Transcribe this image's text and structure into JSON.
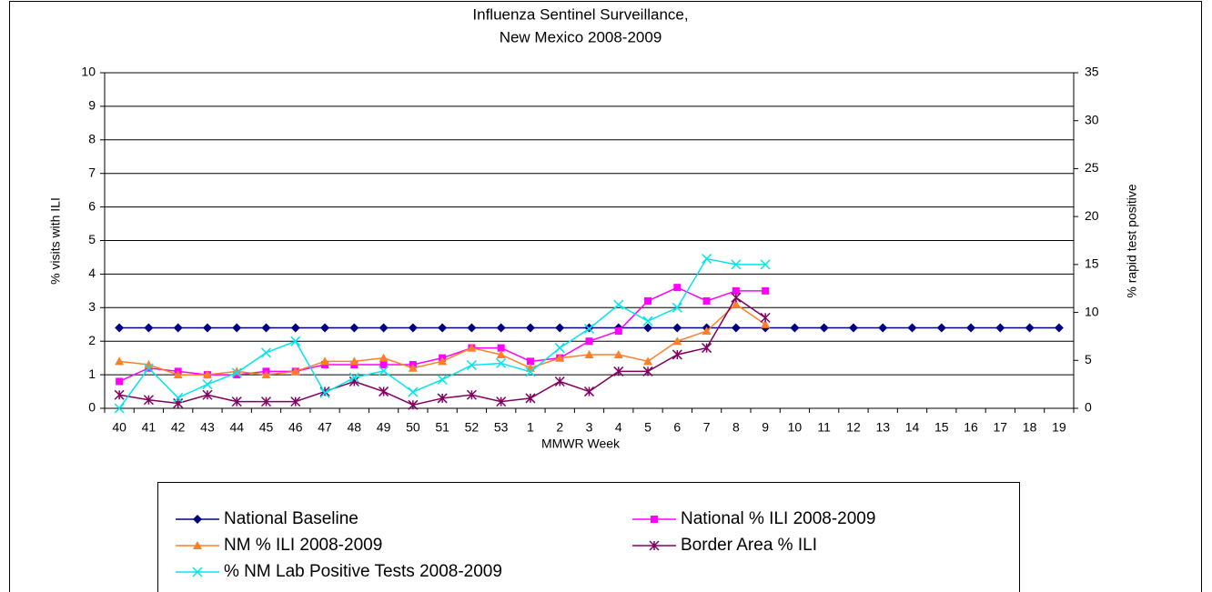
{
  "chart_data": {
    "type": "line",
    "title": [
      "Influenza Sentinel Surveillance,",
      "New Mexico 2008-2009"
    ],
    "x_label": "MMWR Week",
    "y_label": "% visits with ILI",
    "y2_label": "% rapid test positive",
    "categories": [
      "40",
      "41",
      "42",
      "43",
      "44",
      "45",
      "46",
      "47",
      "48",
      "49",
      "50",
      "51",
      "52",
      "53",
      "1",
      "2",
      "3",
      "4",
      "5",
      "6",
      "7",
      "8",
      "9",
      "10",
      "11",
      "12",
      "13",
      "14",
      "15",
      "16",
      "17",
      "18",
      "19"
    ],
    "ylim": [
      0,
      10
    ],
    "yticks": [
      0,
      1,
      2,
      3,
      4,
      5,
      6,
      7,
      8,
      9,
      10
    ],
    "y2lim": [
      0,
      35
    ],
    "y2ticks": [
      0,
      5,
      10,
      15,
      20,
      25,
      30,
      35
    ],
    "grid": true,
    "series": [
      {
        "name": "National Baseline",
        "color": "#000080",
        "marker": "diamond",
        "values": [
          2.4,
          2.4,
          2.4,
          2.4,
          2.4,
          2.4,
          2.4,
          2.4,
          2.4,
          2.4,
          2.4,
          2.4,
          2.4,
          2.4,
          2.4,
          2.4,
          2.4,
          2.4,
          2.4,
          2.4,
          2.4,
          2.4,
          2.4,
          2.4,
          2.4,
          2.4,
          2.4,
          2.4,
          2.4,
          2.4,
          2.4,
          2.4,
          2.4
        ]
      },
      {
        "name": "National % ILI 2008-2009",
        "color": "#ff00ff",
        "marker": "square",
        "values": [
          0.8,
          1.2,
          1.1,
          1.0,
          1.0,
          1.1,
          1.1,
          1.3,
          1.3,
          1.3,
          1.3,
          1.5,
          1.8,
          1.8,
          1.4,
          1.5,
          2.0,
          2.3,
          3.2,
          3.6,
          3.2,
          3.5,
          3.5,
          null,
          null,
          null,
          null,
          null,
          null,
          null,
          null,
          null,
          null
        ]
      },
      {
        "name": "NM % ILI 2008-2009",
        "color": "#ff7f27",
        "marker": "triangle",
        "values": [
          1.4,
          1.3,
          1.0,
          1.0,
          1.1,
          1.0,
          1.1,
          1.4,
          1.4,
          1.5,
          1.2,
          1.4,
          1.8,
          1.6,
          1.2,
          1.5,
          1.6,
          1.6,
          1.4,
          2.0,
          2.3,
          3.1,
          2.5,
          null,
          null,
          null,
          null,
          null,
          null,
          null,
          null,
          null,
          null
        ]
      },
      {
        "name": "Border Area % ILI",
        "color": "#800060",
        "marker": "star",
        "values": [
          0.4,
          0.25,
          0.15,
          0.4,
          0.2,
          0.2,
          0.2,
          0.5,
          0.8,
          0.5,
          0.1,
          0.3,
          0.4,
          0.2,
          0.3,
          0.8,
          0.5,
          1.1,
          1.1,
          1.6,
          1.8,
          3.3,
          2.7,
          null,
          null,
          null,
          null,
          null,
          null,
          null,
          null,
          null,
          null
        ]
      },
      {
        "name": "% NM Lab Positive Tests 2008-2009",
        "color": "#00e5ee",
        "marker": "x",
        "axis": "y2",
        "values": [
          0,
          4.2,
          1.1,
          2.5,
          3.7,
          5.8,
          7.0,
          1.6,
          3.2,
          3.9,
          1.7,
          3.0,
          4.5,
          4.7,
          3.8,
          6.3,
          8.3,
          10.8,
          9.1,
          10.5,
          15.6,
          15.0,
          15.0,
          null,
          null,
          null,
          null,
          null,
          null,
          null,
          null,
          null,
          null
        ]
      }
    ]
  }
}
